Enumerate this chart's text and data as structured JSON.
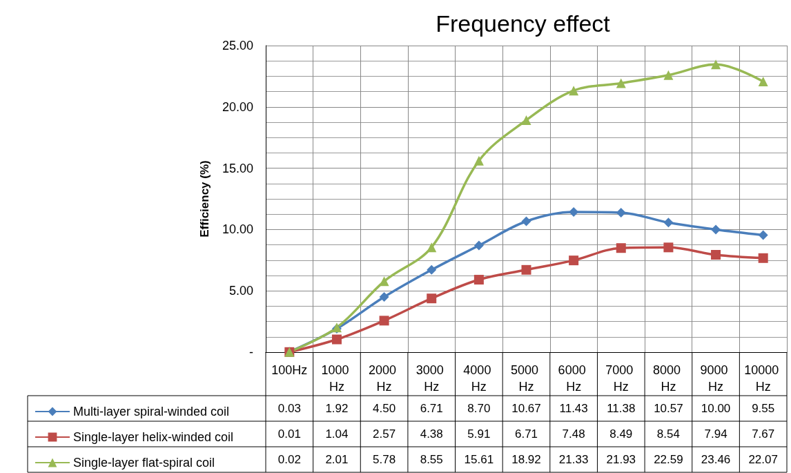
{
  "chart_data": {
    "type": "line",
    "title": "Frequency effect",
    "ylabel": "Efficiency (%)",
    "categories": [
      "100Hz",
      "1000 Hz",
      "2000 Hz",
      "3000 Hz",
      "4000 Hz",
      "5000 Hz",
      "6000 Hz",
      "7000 Hz",
      "8000 Hz",
      "9000 Hz",
      "10000 Hz"
    ],
    "series": [
      {
        "name": "Multi-layer spiral-winded coil",
        "color": "#4a7ebb",
        "marker": "diamond",
        "values": [
          0.03,
          1.92,
          4.5,
          6.71,
          8.7,
          10.67,
          11.43,
          11.38,
          10.57,
          10.0,
          9.55
        ],
        "value_labels": [
          "0.03",
          "1.92",
          "4.50",
          "6.71",
          "8.70",
          "10.67",
          "11.43",
          "11.38",
          "10.57",
          "10.00",
          "9.55"
        ]
      },
      {
        "name": "Single-layer helix-winded coil",
        "color": "#be4b48",
        "marker": "square",
        "values": [
          0.01,
          1.04,
          2.57,
          4.38,
          5.91,
          6.71,
          7.48,
          8.49,
          8.54,
          7.94,
          7.67
        ],
        "value_labels": [
          "0.01",
          "1.04",
          "2.57",
          "4.38",
          "5.91",
          "6.71",
          "7.48",
          "8.49",
          "8.54",
          "7.94",
          "7.67"
        ]
      },
      {
        "name": "Single-layer flat-spiral coil",
        "color": "#98b954",
        "marker": "triangle",
        "values": [
          0.02,
          2.01,
          5.78,
          8.55,
          15.61,
          18.92,
          21.33,
          21.93,
          22.59,
          23.46,
          22.07
        ],
        "value_labels": [
          "0.02",
          "2.01",
          "5.78",
          "8.55",
          "15.61",
          "18.92",
          "21.33",
          "21.93",
          "22.59",
          "23.46",
          "22.07"
        ]
      }
    ],
    "ylim": [
      0,
      25
    ],
    "yticks": [
      {
        "value": 0,
        "label": "-"
      },
      {
        "value": 5,
        "label": "5.00"
      },
      {
        "value": 10,
        "label": "10.00"
      },
      {
        "value": 15,
        "label": "15.00"
      },
      {
        "value": 20,
        "label": "20.00"
      },
      {
        "value": 25,
        "label": "25.00"
      }
    ],
    "grid": true,
    "legend": "bottom left"
  }
}
